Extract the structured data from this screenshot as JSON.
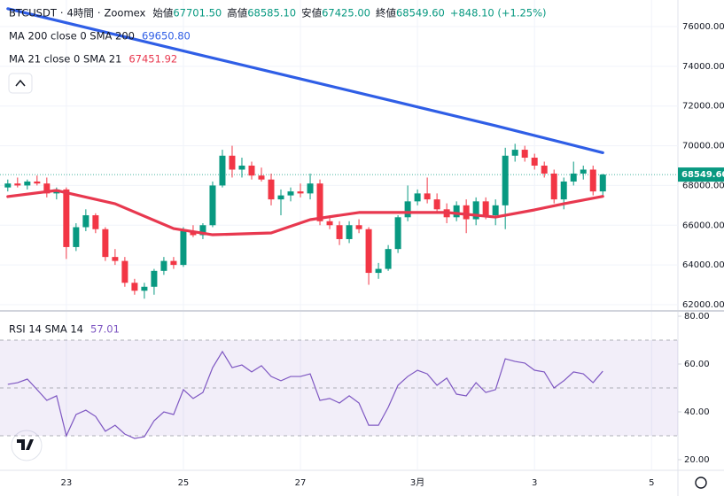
{
  "chart_data": {
    "type": "candlestick",
    "header": {
      "symbol": "BTCUSDT",
      "separator": "·",
      "interval": "4時間",
      "exchange": "Zoomex",
      "open_prefix": "始値",
      "open": "67701.50",
      "high_prefix": "高値",
      "high": "68585.10",
      "low_prefix": "安値",
      "low": "67425.00",
      "close_prefix": "終値",
      "close": "68549.60",
      "change": "+848.10 (+1.25%)"
    },
    "xlim": [
      -0.8,
      68.7
    ],
    "xticks": [
      {
        "value": 6,
        "label": "23"
      },
      {
        "value": 18,
        "label": "25"
      },
      {
        "value": 30,
        "label": "27"
      },
      {
        "value": 42,
        "label": "3月"
      },
      {
        "value": 54,
        "label": "3"
      },
      {
        "value": 66,
        "label": "5"
      }
    ],
    "ylim": [
      61730,
      77340
    ],
    "yticks": [
      {
        "value": 62000,
        "label": "62000.00"
      },
      {
        "value": 64000,
        "label": "64000.00"
      },
      {
        "value": 66000,
        "label": "66000.00"
      },
      {
        "value": 68000,
        "label": "68000.00"
      },
      {
        "value": 70000,
        "label": "70000.00"
      },
      {
        "value": 72000,
        "label": "72000.00"
      },
      {
        "value": 74000,
        "label": "74000.00"
      },
      {
        "value": 76000,
        "label": "76000.00"
      }
    ],
    "grid": true,
    "up_color": "#089981",
    "down_color": "#f23645",
    "candles": {
      "open": [
        67900,
        68100,
        68000,
        68200,
        68100,
        67600,
        67800,
        64900,
        65900,
        66500,
        65800,
        64400,
        64200,
        63100,
        62700,
        62900,
        63700,
        64200,
        64000,
        65700,
        65500,
        66000,
        68000,
        69500,
        68800,
        69000,
        68500,
        68300,
        67300,
        67500,
        67700,
        67600,
        68100,
        66200,
        66000,
        65300,
        66000,
        65800,
        63600,
        63800,
        64800,
        66400,
        67200,
        67600,
        67300,
        66800,
        66400,
        67000,
        66300,
        67200,
        66500,
        67000,
        69500,
        69800,
        69400,
        69000,
        68600,
        67300,
        68200,
        68600,
        68800,
        67701.5
      ],
      "high": [
        68300,
        68400,
        68300,
        68500,
        68400,
        67900,
        67900,
        66100,
        66800,
        66600,
        65900,
        64800,
        64400,
        63300,
        63100,
        63800,
        64400,
        64400,
        65900,
        66000,
        66100,
        68200,
        69800,
        70000,
        69400,
        69200,
        68900,
        68600,
        67800,
        67900,
        68100,
        68600,
        68300,
        66500,
        66200,
        66200,
        66300,
        65900,
        64100,
        65000,
        66500,
        68000,
        67800,
        68400,
        67600,
        67100,
        67200,
        67300,
        67400,
        67400,
        67300,
        69900,
        70100,
        70000,
        69600,
        69200,
        68800,
        68400,
        69200,
        69000,
        69000,
        68585.1
      ],
      "low": [
        67700,
        67900,
        67800,
        68000,
        67400,
        67300,
        64300,
        64700,
        65700,
        65600,
        64200,
        64000,
        62900,
        62500,
        62300,
        62500,
        63500,
        63800,
        63900,
        65400,
        65300,
        65900,
        67900,
        68400,
        68400,
        68300,
        68200,
        67000,
        66500,
        67200,
        67400,
        67300,
        66000,
        65800,
        65000,
        65100,
        65600,
        63000,
        63300,
        63700,
        64600,
        66200,
        67000,
        67100,
        66600,
        66100,
        66200,
        65600,
        66000,
        66300,
        66000,
        65800,
        69200,
        69200,
        68800,
        68400,
        67100,
        66800,
        68000,
        68300,
        67500,
        67425
      ],
      "close": [
        68100,
        68000,
        68200,
        68100,
        67600,
        67800,
        64900,
        65900,
        66500,
        65800,
        64400,
        64200,
        63100,
        62700,
        62900,
        63700,
        64200,
        64000,
        65700,
        65500,
        66000,
        68000,
        69500,
        68800,
        69000,
        68500,
        68300,
        67300,
        67500,
        67700,
        67600,
        68100,
        66200,
        66000,
        65300,
        66000,
        65800,
        63600,
        63800,
        64800,
        66400,
        67200,
        67600,
        67300,
        66800,
        66400,
        67000,
        66300,
        67200,
        66500,
        67000,
        69500,
        69800,
        69400,
        69000,
        68600,
        67300,
        68200,
        68600,
        68800,
        67700,
        68549.6
      ]
    },
    "last_price_label": "68549.60",
    "moving_averages": [
      {
        "name": "MA 200 close 0 SMA 200",
        "color": "#2f5ee6",
        "value_label": "69650.80",
        "x": [
          0,
          10,
          20,
          30,
          40,
          50,
          61
        ],
        "values": [
          76900,
          75720,
          74540,
          73370,
          72190,
          71010,
          69650.8
        ]
      },
      {
        "name": "MA 21 close 0 SMA 21",
        "color": "#e8384f",
        "value_label": "67451.92",
        "x": [
          0,
          5,
          11,
          17,
          21,
          27,
          31,
          36,
          40,
          45,
          50,
          54,
          57,
          61
        ],
        "values": [
          67440,
          67750,
          67080,
          65830,
          65520,
          65610,
          66280,
          66640,
          66640,
          66640,
          66410,
          66770,
          67080,
          67451.92
        ]
      }
    ],
    "rsi": {
      "name": "RSI 14 SMA 14",
      "value_label": "57.01",
      "color": "#7e57c2",
      "ylim": [
        15.93,
        81.85
      ],
      "yticks": [
        {
          "value": 20,
          "label": "20.00"
        },
        {
          "value": 40,
          "label": "40.00"
        },
        {
          "value": 60,
          "label": "60.00"
        },
        {
          "value": 80,
          "label": "80.00"
        }
      ],
      "band": [
        30,
        70
      ],
      "midline": 50,
      "values": [
        51.5,
        52.2,
        53.7,
        49.3,
        44.8,
        46.7,
        30.0,
        38.9,
        40.7,
        38.1,
        31.9,
        34.4,
        30.7,
        28.9,
        29.6,
        36.3,
        40.0,
        38.9,
        49.3,
        45.6,
        48.1,
        58.5,
        65.2,
        58.5,
        59.6,
        56.7,
        59.3,
        54.8,
        53.0,
        54.8,
        54.8,
        55.9,
        44.8,
        45.6,
        43.7,
        46.7,
        43.7,
        34.4,
        34.4,
        41.9,
        51.1,
        54.8,
        57.4,
        55.9,
        51.1,
        54.1,
        47.4,
        46.7,
        52.2,
        48.1,
        49.3,
        62.2,
        61.1,
        60.4,
        57.4,
        56.7,
        50.0,
        53.0,
        56.7,
        55.9,
        52.2,
        57.01
      ]
    }
  }
}
